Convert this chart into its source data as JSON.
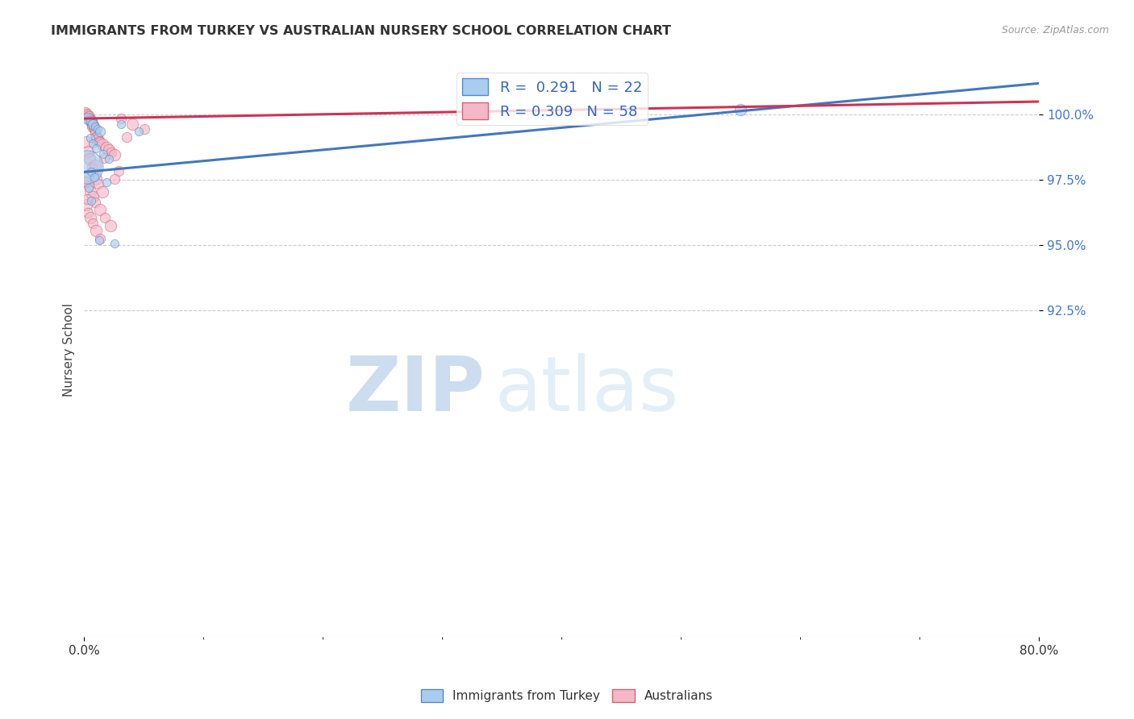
{
  "title": "IMMIGRANTS FROM TURKEY VS AUSTRALIAN NURSERY SCHOOL CORRELATION CHART",
  "source": "Source: ZipAtlas.com",
  "ylabel": "Nursery School",
  "xmin": 0.0,
  "xmax": 80.0,
  "ymin": 80.0,
  "ymax": 102.0,
  "yticks": [
    92.5,
    95.0,
    97.5,
    100.0
  ],
  "xtick_left_label": "0.0%",
  "xtick_right_label": "80.0%",
  "blue_R": 0.291,
  "blue_N": 22,
  "pink_R": 0.309,
  "pink_N": 58,
  "blue_color": "#aaccee",
  "pink_color": "#f4b8c8",
  "blue_edge_color": "#5588cc",
  "pink_edge_color": "#cc6677",
  "blue_line_color": "#4477bb",
  "pink_line_color": "#cc3355",
  "watermark_zip": "ZIP",
  "watermark_atlas": "atlas",
  "legend_label_blue": "Immigrants from Turkey",
  "legend_label_pink": "Australians",
  "blue_points": [
    [
      0.3,
      99.85,
      7
    ],
    [
      0.55,
      99.75,
      6
    ],
    [
      0.75,
      99.65,
      6
    ],
    [
      0.9,
      99.55,
      5
    ],
    [
      1.1,
      99.45,
      5
    ],
    [
      1.35,
      99.35,
      6
    ],
    [
      0.5,
      99.1,
      5
    ],
    [
      0.7,
      98.9,
      5
    ],
    [
      1.0,
      98.7,
      5
    ],
    [
      1.6,
      98.5,
      5
    ],
    [
      2.1,
      98.3,
      5
    ],
    [
      0.15,
      98.0,
      20
    ],
    [
      0.55,
      97.8,
      5
    ],
    [
      0.85,
      97.6,
      5
    ],
    [
      1.85,
      97.4,
      5
    ],
    [
      0.35,
      97.2,
      5
    ],
    [
      3.1,
      99.65,
      5
    ],
    [
      4.6,
      99.35,
      5
    ],
    [
      1.25,
      95.2,
      5
    ],
    [
      2.55,
      95.05,
      5
    ],
    [
      55.0,
      100.2,
      7
    ],
    [
      0.55,
      96.7,
      5
    ]
  ],
  "pink_points": [
    [
      0.1,
      100.1,
      6
    ],
    [
      0.2,
      100.05,
      6
    ],
    [
      0.28,
      100.0,
      6
    ],
    [
      0.35,
      99.95,
      6
    ],
    [
      0.4,
      99.9,
      7
    ],
    [
      0.45,
      99.85,
      6
    ],
    [
      0.5,
      99.8,
      7
    ],
    [
      0.55,
      99.75,
      7
    ],
    [
      0.6,
      99.7,
      6
    ],
    [
      0.65,
      99.65,
      6
    ],
    [
      0.7,
      99.6,
      7
    ],
    [
      0.75,
      99.55,
      7
    ],
    [
      0.8,
      99.5,
      6
    ],
    [
      0.85,
      99.45,
      6
    ],
    [
      0.9,
      99.35,
      6
    ],
    [
      0.95,
      99.25,
      6
    ],
    [
      1.0,
      99.15,
      6
    ],
    [
      1.05,
      99.1,
      7
    ],
    [
      1.15,
      99.05,
      7
    ],
    [
      1.25,
      99.0,
      6
    ],
    [
      1.35,
      98.95,
      6
    ],
    [
      1.55,
      98.85,
      7
    ],
    [
      1.85,
      98.75,
      7
    ],
    [
      2.05,
      98.65,
      7
    ],
    [
      2.25,
      98.55,
      6
    ],
    [
      2.55,
      98.45,
      7
    ],
    [
      0.18,
      98.95,
      7
    ],
    [
      0.28,
      98.6,
      7
    ],
    [
      0.42,
      98.3,
      7
    ],
    [
      0.62,
      98.0,
      6
    ],
    [
      0.82,
      97.75,
      7
    ],
    [
      1.02,
      97.55,
      7
    ],
    [
      1.22,
      97.35,
      6
    ],
    [
      1.52,
      97.05,
      7
    ],
    [
      0.22,
      97.65,
      7
    ],
    [
      0.38,
      97.25,
      6
    ],
    [
      0.52,
      97.05,
      7
    ],
    [
      0.72,
      96.85,
      7
    ],
    [
      0.92,
      96.65,
      6
    ],
    [
      1.32,
      96.35,
      7
    ],
    [
      1.72,
      96.05,
      6
    ],
    [
      2.22,
      95.75,
      7
    ],
    [
      0.18,
      96.55,
      7
    ],
    [
      0.32,
      96.25,
      6
    ],
    [
      0.52,
      96.05,
      7
    ],
    [
      0.72,
      95.85,
      6
    ],
    [
      1.02,
      95.55,
      7
    ],
    [
      1.32,
      95.25,
      6
    ],
    [
      3.05,
      99.85,
      6
    ],
    [
      4.05,
      99.65,
      7
    ],
    [
      5.05,
      99.45,
      6
    ],
    [
      3.55,
      99.15,
      6
    ],
    [
      2.85,
      97.85,
      6
    ],
    [
      0.12,
      97.45,
      6
    ],
    [
      0.22,
      96.75,
      6
    ],
    [
      1.65,
      98.35,
      6
    ],
    [
      0.92,
      98.05,
      7
    ],
    [
      2.55,
      97.55,
      6
    ]
  ],
  "blue_line": {
    "x0": 0.0,
    "x1": 80.0,
    "y0": 97.8,
    "y1": 101.2
  },
  "pink_line": {
    "x0": 0.0,
    "x1": 80.0,
    "y0": 99.85,
    "y1": 100.5
  }
}
